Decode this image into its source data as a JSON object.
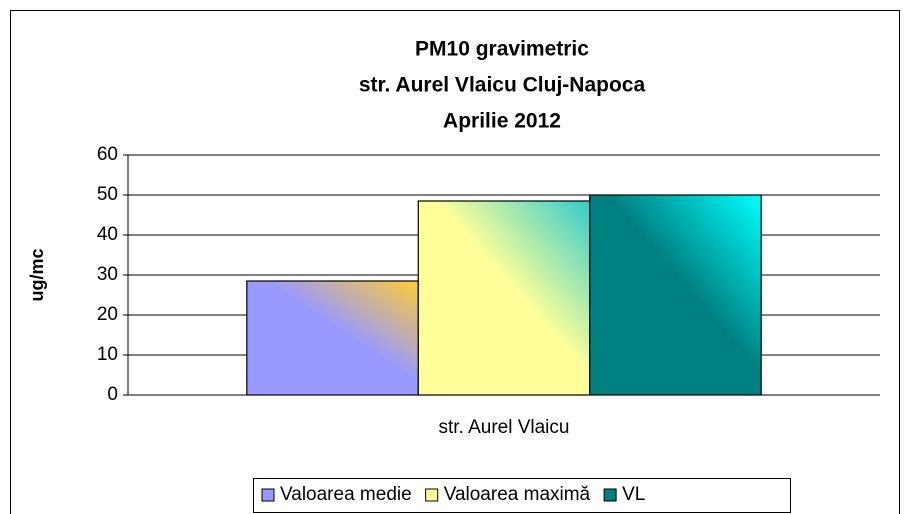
{
  "chart_data": {
    "type": "bar",
    "title": [
      "PM10 gravimetric",
      "str. Aurel Vlaicu Cluj-Napoca",
      "Aprilie 2012"
    ],
    "y_label": "ug/mc",
    "categories": [
      "str. Aurel Vlaicu"
    ],
    "series": [
      {
        "name": "Valoarea medie",
        "color": "#9999ff",
        "values": [
          28.5
        ]
      },
      {
        "name": "Valoarea maximă",
        "color": "#ffff99",
        "values": [
          48.5
        ]
      },
      {
        "name": "VL",
        "color": "#008080",
        "values": [
          50
        ]
      }
    ],
    "ylim": [
      0,
      60
    ],
    "yticks": [
      0,
      10,
      20,
      30,
      40,
      50,
      60
    ],
    "grid": true,
    "legend": "bottom"
  }
}
